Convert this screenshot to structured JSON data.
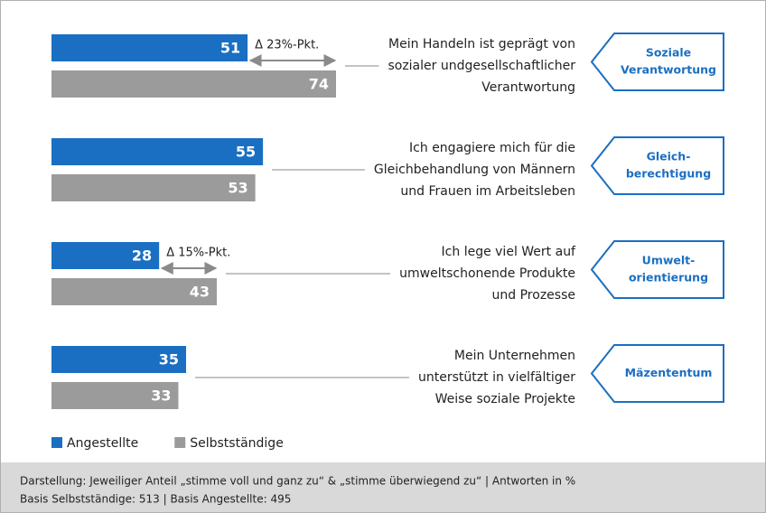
{
  "chart_data": {
    "type": "bar",
    "series": [
      {
        "name": "Angestellte",
        "color": "#1b6fc2",
        "values": [
          51,
          55,
          28,
          35
        ]
      },
      {
        "name": "Selbstständige",
        "color": "#9b9b9b",
        "values": [
          74,
          53,
          43,
          33
        ]
      }
    ],
    "groups": [
      {
        "statement": [
          "Mein Handeln ist geprägt von",
          "sozialer undgesellschaftlicher",
          "Verantwortung"
        ],
        "tag": [
          "Soziale",
          "Verantwortung"
        ],
        "delta": "Δ 23%-Pkt."
      },
      {
        "statement": [
          "Ich engagiere mich für die",
          "Gleichbehandlung von Männern",
          "und Frauen im Arbeitsleben"
        ],
        "tag": [
          "Gleich-",
          "berechtigung"
        ]
      },
      {
        "statement": [
          "Ich lege viel Wert auf",
          "umweltschonende Produkte",
          "und Prozesse"
        ],
        "tag": [
          "Umwelt-",
          "orientierung"
        ],
        "delta": "Δ 15%-Pkt."
      },
      {
        "statement": [
          "Mein Unternehmen",
          "unterstützt in vielfältiger",
          "Weise soziale Projekte"
        ],
        "tag": [
          "Mäzententum"
        ]
      }
    ],
    "footer": [
      "Darstellung: Jeweiliger Anteil „stimme voll und ganz zu“ & „stimme überwiegend zu“  |  Antworten in %",
      "Basis Selbstständige: 513  |  Basis Angestellte: 495"
    ]
  }
}
